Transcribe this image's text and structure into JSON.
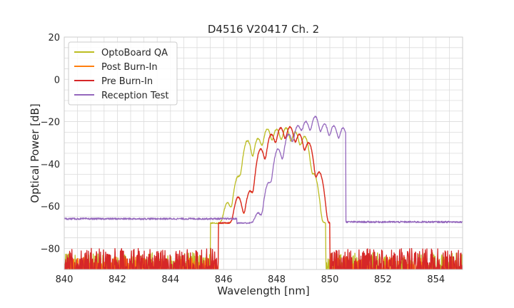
{
  "chart_data": {
    "type": "line",
    "title": "D4516 V20417 Ch. 2",
    "xlabel": "Wavelength [nm]",
    "ylabel": "Optical Power [dB]",
    "xlim": [
      840,
      855
    ],
    "ylim": [
      -90,
      20
    ],
    "xticks": [
      840,
      842,
      844,
      846,
      848,
      850,
      852,
      854
    ],
    "yticks": [
      -80,
      -60,
      -40,
      -20,
      0,
      20
    ],
    "ytick_labels": [
      "−80",
      "−60",
      "−40",
      "−20",
      "0",
      "20"
    ],
    "xtick_labels": [
      "840",
      "842",
      "844",
      "846",
      "848",
      "850",
      "852",
      "854"
    ],
    "grid": true,
    "legend_placement": "top-left",
    "series": [
      {
        "name": "OptoBoard QA",
        "color": "#bcbd22",
        "noise_floor": -80,
        "band": [
          845.5,
          849.85
        ],
        "peaks": [
          {
            "x": 846.15,
            "y": -59
          },
          {
            "x": 846.55,
            "y": -46
          },
          {
            "x": 846.9,
            "y": -29
          },
          {
            "x": 847.3,
            "y": -28
          },
          {
            "x": 847.65,
            "y": -23.5
          },
          {
            "x": 848.0,
            "y": -23.5
          },
          {
            "x": 848.35,
            "y": -23
          },
          {
            "x": 848.7,
            "y": -25
          },
          {
            "x": 849.05,
            "y": -27
          },
          {
            "x": 849.4,
            "y": -45
          }
        ]
      },
      {
        "name": "Post Burn-In",
        "color": "#ff7f0e",
        "noise_floor": -82,
        "band": [
          845.8,
          850.0
        ],
        "peaks": [
          {
            "x": 846.55,
            "y": -56
          },
          {
            "x": 847.0,
            "y": -53
          },
          {
            "x": 847.4,
            "y": -33
          },
          {
            "x": 847.8,
            "y": -26
          },
          {
            "x": 848.15,
            "y": -23
          },
          {
            "x": 848.5,
            "y": -22.5
          },
          {
            "x": 848.85,
            "y": -26
          },
          {
            "x": 849.2,
            "y": -30
          },
          {
            "x": 849.6,
            "y": -44
          }
        ]
      },
      {
        "name": "Pre Burn-In",
        "color": "#d62728",
        "noise_floor": -78,
        "band": [
          845.8,
          850.0
        ],
        "peaks": [
          {
            "x": 846.55,
            "y": -56
          },
          {
            "x": 847.0,
            "y": -53
          },
          {
            "x": 847.4,
            "y": -33
          },
          {
            "x": 847.8,
            "y": -26
          },
          {
            "x": 848.15,
            "y": -23
          },
          {
            "x": 848.5,
            "y": -22.5
          },
          {
            "x": 848.85,
            "y": -26
          },
          {
            "x": 849.2,
            "y": -30
          },
          {
            "x": 849.6,
            "y": -44
          }
        ]
      },
      {
        "name": "Reception Test",
        "color": "#9467bd",
        "noise_floor": -66,
        "baseline_left": -66,
        "baseline_right": -67.5,
        "band": [
          846.5,
          850.6
        ],
        "peaks": [
          {
            "x": 847.3,
            "y": -65
          },
          {
            "x": 847.7,
            "y": -49
          },
          {
            "x": 848.05,
            "y": -33
          },
          {
            "x": 848.45,
            "y": -26
          },
          {
            "x": 848.8,
            "y": -22
          },
          {
            "x": 849.1,
            "y": -20
          },
          {
            "x": 849.45,
            "y": -17.5
          },
          {
            "x": 849.8,
            "y": -21
          },
          {
            "x": 850.15,
            "y": -22
          },
          {
            "x": 850.5,
            "y": -23
          }
        ]
      }
    ]
  }
}
